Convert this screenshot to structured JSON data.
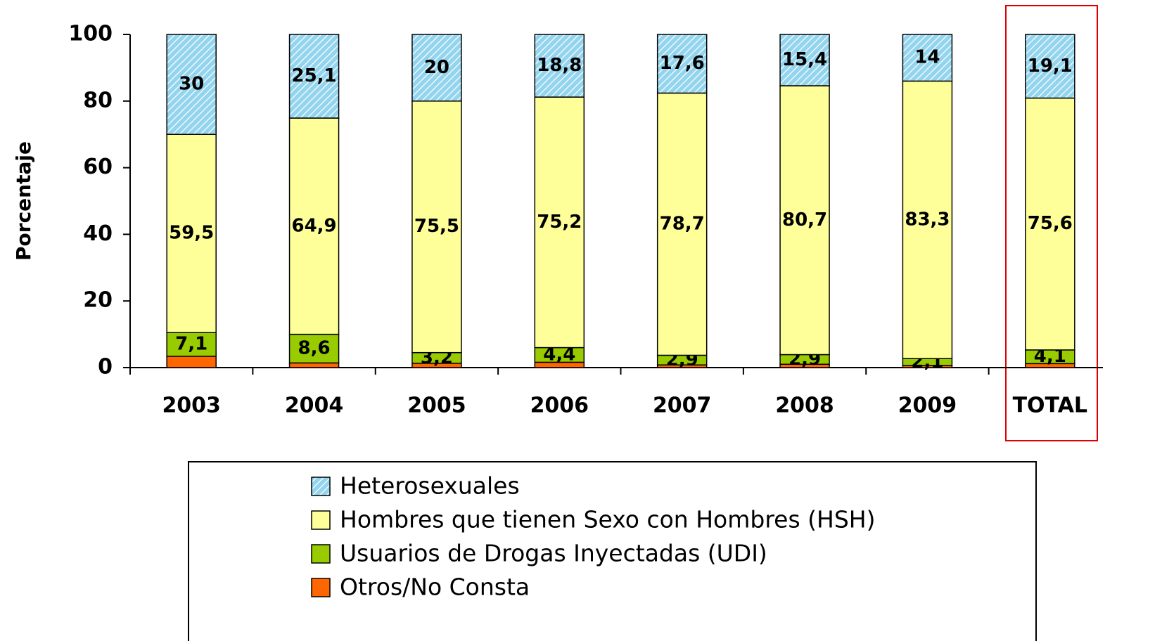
{
  "chart_data": {
    "type": "stacked_bar",
    "y_label": "Porcentaje",
    "categories": [
      "2003",
      "2004",
      "2005",
      "2006",
      "2007",
      "2008",
      "2009",
      "TOTAL"
    ],
    "series": [
      {
        "name": "Otros/No Consta",
        "color": "#ff6600",
        "values": [
          3.4,
          1.4,
          1.3,
          1.6,
          0.8,
          1.0,
          0.6,
          1.2
        ]
      },
      {
        "name": "Usuarios de Drogas Inyectadas (UDI)",
        "color": "#99cc00",
        "values": [
          7.1,
          8.6,
          3.2,
          4.4,
          2.9,
          2.9,
          2.1,
          4.1
        ],
        "value_labels": [
          "7,1",
          "8,6",
          "3,2",
          "4,4",
          "2,9",
          "2,9",
          "2,1",
          "4,1"
        ]
      },
      {
        "name": "Hombres que tienen Sexo con Hombres (HSH)",
        "color": "#ffff99",
        "values": [
          59.5,
          64.9,
          75.5,
          75.2,
          78.7,
          80.7,
          83.3,
          75.6
        ],
        "value_labels": [
          "59,5",
          "64,9",
          "75,5",
          "75,2",
          "78,7",
          "80,7",
          "83,3",
          "75,6"
        ]
      },
      {
        "name": "Heterosexuales",
        "color": "#93d4ee",
        "pattern": "hatch",
        "values": [
          30,
          25.1,
          20,
          18.8,
          17.6,
          15.4,
          14,
          19.1
        ],
        "value_labels": [
          "30",
          "25,1",
          "20",
          "18,8",
          "17,6",
          "15,4",
          "14",
          "19,1"
        ]
      }
    ],
    "ylim": [
      0,
      100
    ],
    "yticks": [
      0,
      20,
      40,
      60,
      80,
      100
    ],
    "grid": false
  }
}
